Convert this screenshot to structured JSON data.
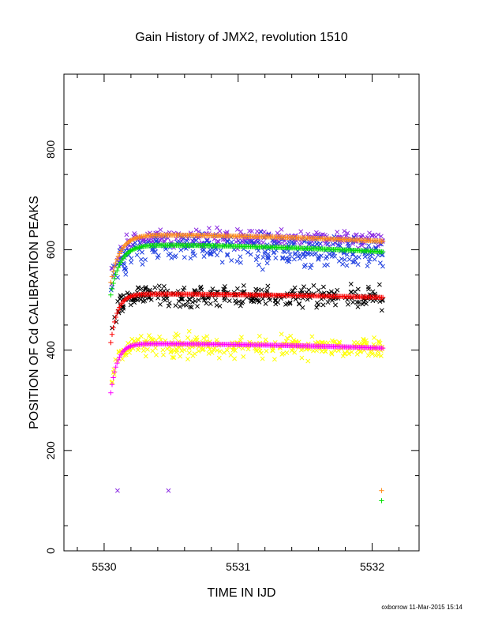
{
  "footer": {
    "credit": "oxborrow 11-Mar-2015 15:14"
  },
  "chart_data": {
    "type": "scatter",
    "title": "Gain History of JMX2, revolution 1510",
    "xlabel": "TIME IN IJD",
    "ylabel": "POSITION OF Cd CALIBRATION PEAKS",
    "xlim": [
      5529.7,
      5532.35
    ],
    "ylim": [
      0,
      950
    ],
    "xticks": [
      5530,
      5531,
      5532
    ],
    "yticks": [
      0,
      200,
      400,
      600,
      800
    ],
    "grid": false,
    "legend": "none",
    "series": [
      {
        "kind": "scatter",
        "marker": "x",
        "color": "#8a2be2",
        "x_start": 5530.05,
        "x_end": 5532.08,
        "start": 535,
        "plateau": 625,
        "tau": 0.06,
        "drift": -5,
        "noise": 12
      },
      {
        "kind": "scatter",
        "marker": "x",
        "color": "#1f3fe0",
        "x_start": 5530.05,
        "x_end": 5532.08,
        "start": 520,
        "plateau": 605,
        "tau": 0.06,
        "drift": -10,
        "noise": 22
      },
      {
        "kind": "scatter",
        "marker": "x",
        "color": "#000000",
        "x_start": 5530.05,
        "x_end": 5532.08,
        "start": 420,
        "plateau": 510,
        "tau": 0.05,
        "drift": -5,
        "noise": 15
      },
      {
        "kind": "scatter",
        "marker": "x",
        "color": "#ffff00",
        "x_start": 5530.05,
        "x_end": 5532.08,
        "start": 330,
        "plateau": 410,
        "tau": 0.05,
        "drift": -5,
        "noise": 15
      },
      {
        "kind": "fit",
        "marker": "+",
        "color": "#ff8c1a",
        "x_start": 5530.05,
        "x_end": 5532.08,
        "start": 535,
        "peak": 630,
        "end": 617,
        "tau": 0.07
      },
      {
        "kind": "fit",
        "marker": "+",
        "color": "#00e000",
        "x_start": 5530.05,
        "x_end": 5532.08,
        "start": 510,
        "peak": 610,
        "end": 596,
        "tau": 0.07
      },
      {
        "kind": "fit",
        "marker": "+",
        "color": "#ff0000",
        "x_start": 5530.05,
        "x_end": 5532.08,
        "start": 415,
        "peak": 512,
        "end": 505,
        "tau": 0.05
      },
      {
        "kind": "fit",
        "marker": "+",
        "color": "#ff00ff",
        "x_start": 5530.05,
        "x_end": 5532.08,
        "start": 315,
        "peak": 413,
        "end": 404,
        "tau": 0.05
      }
    ],
    "isolated_points": [
      {
        "x": 5530.1,
        "y": 120,
        "marker": "x",
        "color": "#8a2be2"
      },
      {
        "x": 5530.48,
        "y": 120,
        "marker": "x",
        "color": "#8a2be2"
      },
      {
        "x": 5532.07,
        "y": 120,
        "marker": "+",
        "color": "#ff8c1a"
      },
      {
        "x": 5532.07,
        "y": 100,
        "marker": "+",
        "color": "#00e000"
      }
    ]
  }
}
